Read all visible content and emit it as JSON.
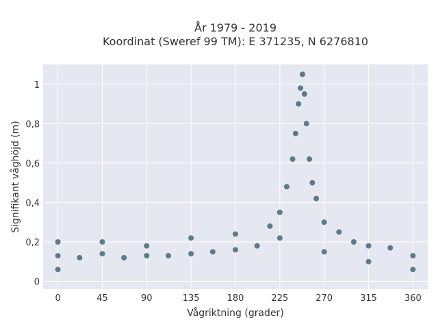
{
  "chart_data": {
    "type": "scatter",
    "title_line1": "År 1979 - 2019",
    "title_line2": "Koordinat (Sweref 99 TM): E 371235, N 6276810",
    "xlabel": "Vågriktning (grader)",
    "ylabel": "Signifikant våghöjd (m)",
    "xlim": [
      -15,
      375
    ],
    "ylim": [
      -0.04,
      1.1
    ],
    "x_ticks": [
      0,
      45,
      90,
      135,
      180,
      225,
      270,
      315,
      360
    ],
    "x_tick_labels": [
      "0",
      "45",
      "90",
      "135",
      "180",
      "225",
      "270",
      "315",
      "360"
    ],
    "y_ticks": [
      0,
      0.2,
      0.4,
      0.6,
      0.8,
      1.0
    ],
    "y_tick_labels": [
      "0",
      "0,2",
      "0,4",
      "0,6",
      "0,8",
      "1"
    ],
    "grid": true,
    "marker_color": "#2f5468",
    "background_color": "#e5e8f0",
    "grid_color": "#ffffff",
    "points": [
      [
        0,
        0.06
      ],
      [
        0,
        0.13
      ],
      [
        0,
        0.2
      ],
      [
        22,
        0.12
      ],
      [
        45,
        0.14
      ],
      [
        45,
        0.2
      ],
      [
        67,
        0.12
      ],
      [
        90,
        0.13
      ],
      [
        90,
        0.18
      ],
      [
        112,
        0.13
      ],
      [
        135,
        0.14
      ],
      [
        135,
        0.22
      ],
      [
        157,
        0.15
      ],
      [
        180,
        0.16
      ],
      [
        180,
        0.24
      ],
      [
        202,
        0.18
      ],
      [
        215,
        0.28
      ],
      [
        225,
        0.22
      ],
      [
        225,
        0.35
      ],
      [
        232,
        0.48
      ],
      [
        238,
        0.62
      ],
      [
        241,
        0.75
      ],
      [
        244,
        0.9
      ],
      [
        246,
        0.98
      ],
      [
        248,
        1.05
      ],
      [
        250,
        0.95
      ],
      [
        252,
        0.8
      ],
      [
        255,
        0.62
      ],
      [
        258,
        0.5
      ],
      [
        262,
        0.42
      ],
      [
        270,
        0.3
      ],
      [
        270,
        0.15
      ],
      [
        285,
        0.25
      ],
      [
        300,
        0.2
      ],
      [
        315,
        0.18
      ],
      [
        315,
        0.1
      ],
      [
        337,
        0.17
      ],
      [
        360,
        0.13
      ],
      [
        360,
        0.06
      ]
    ]
  }
}
